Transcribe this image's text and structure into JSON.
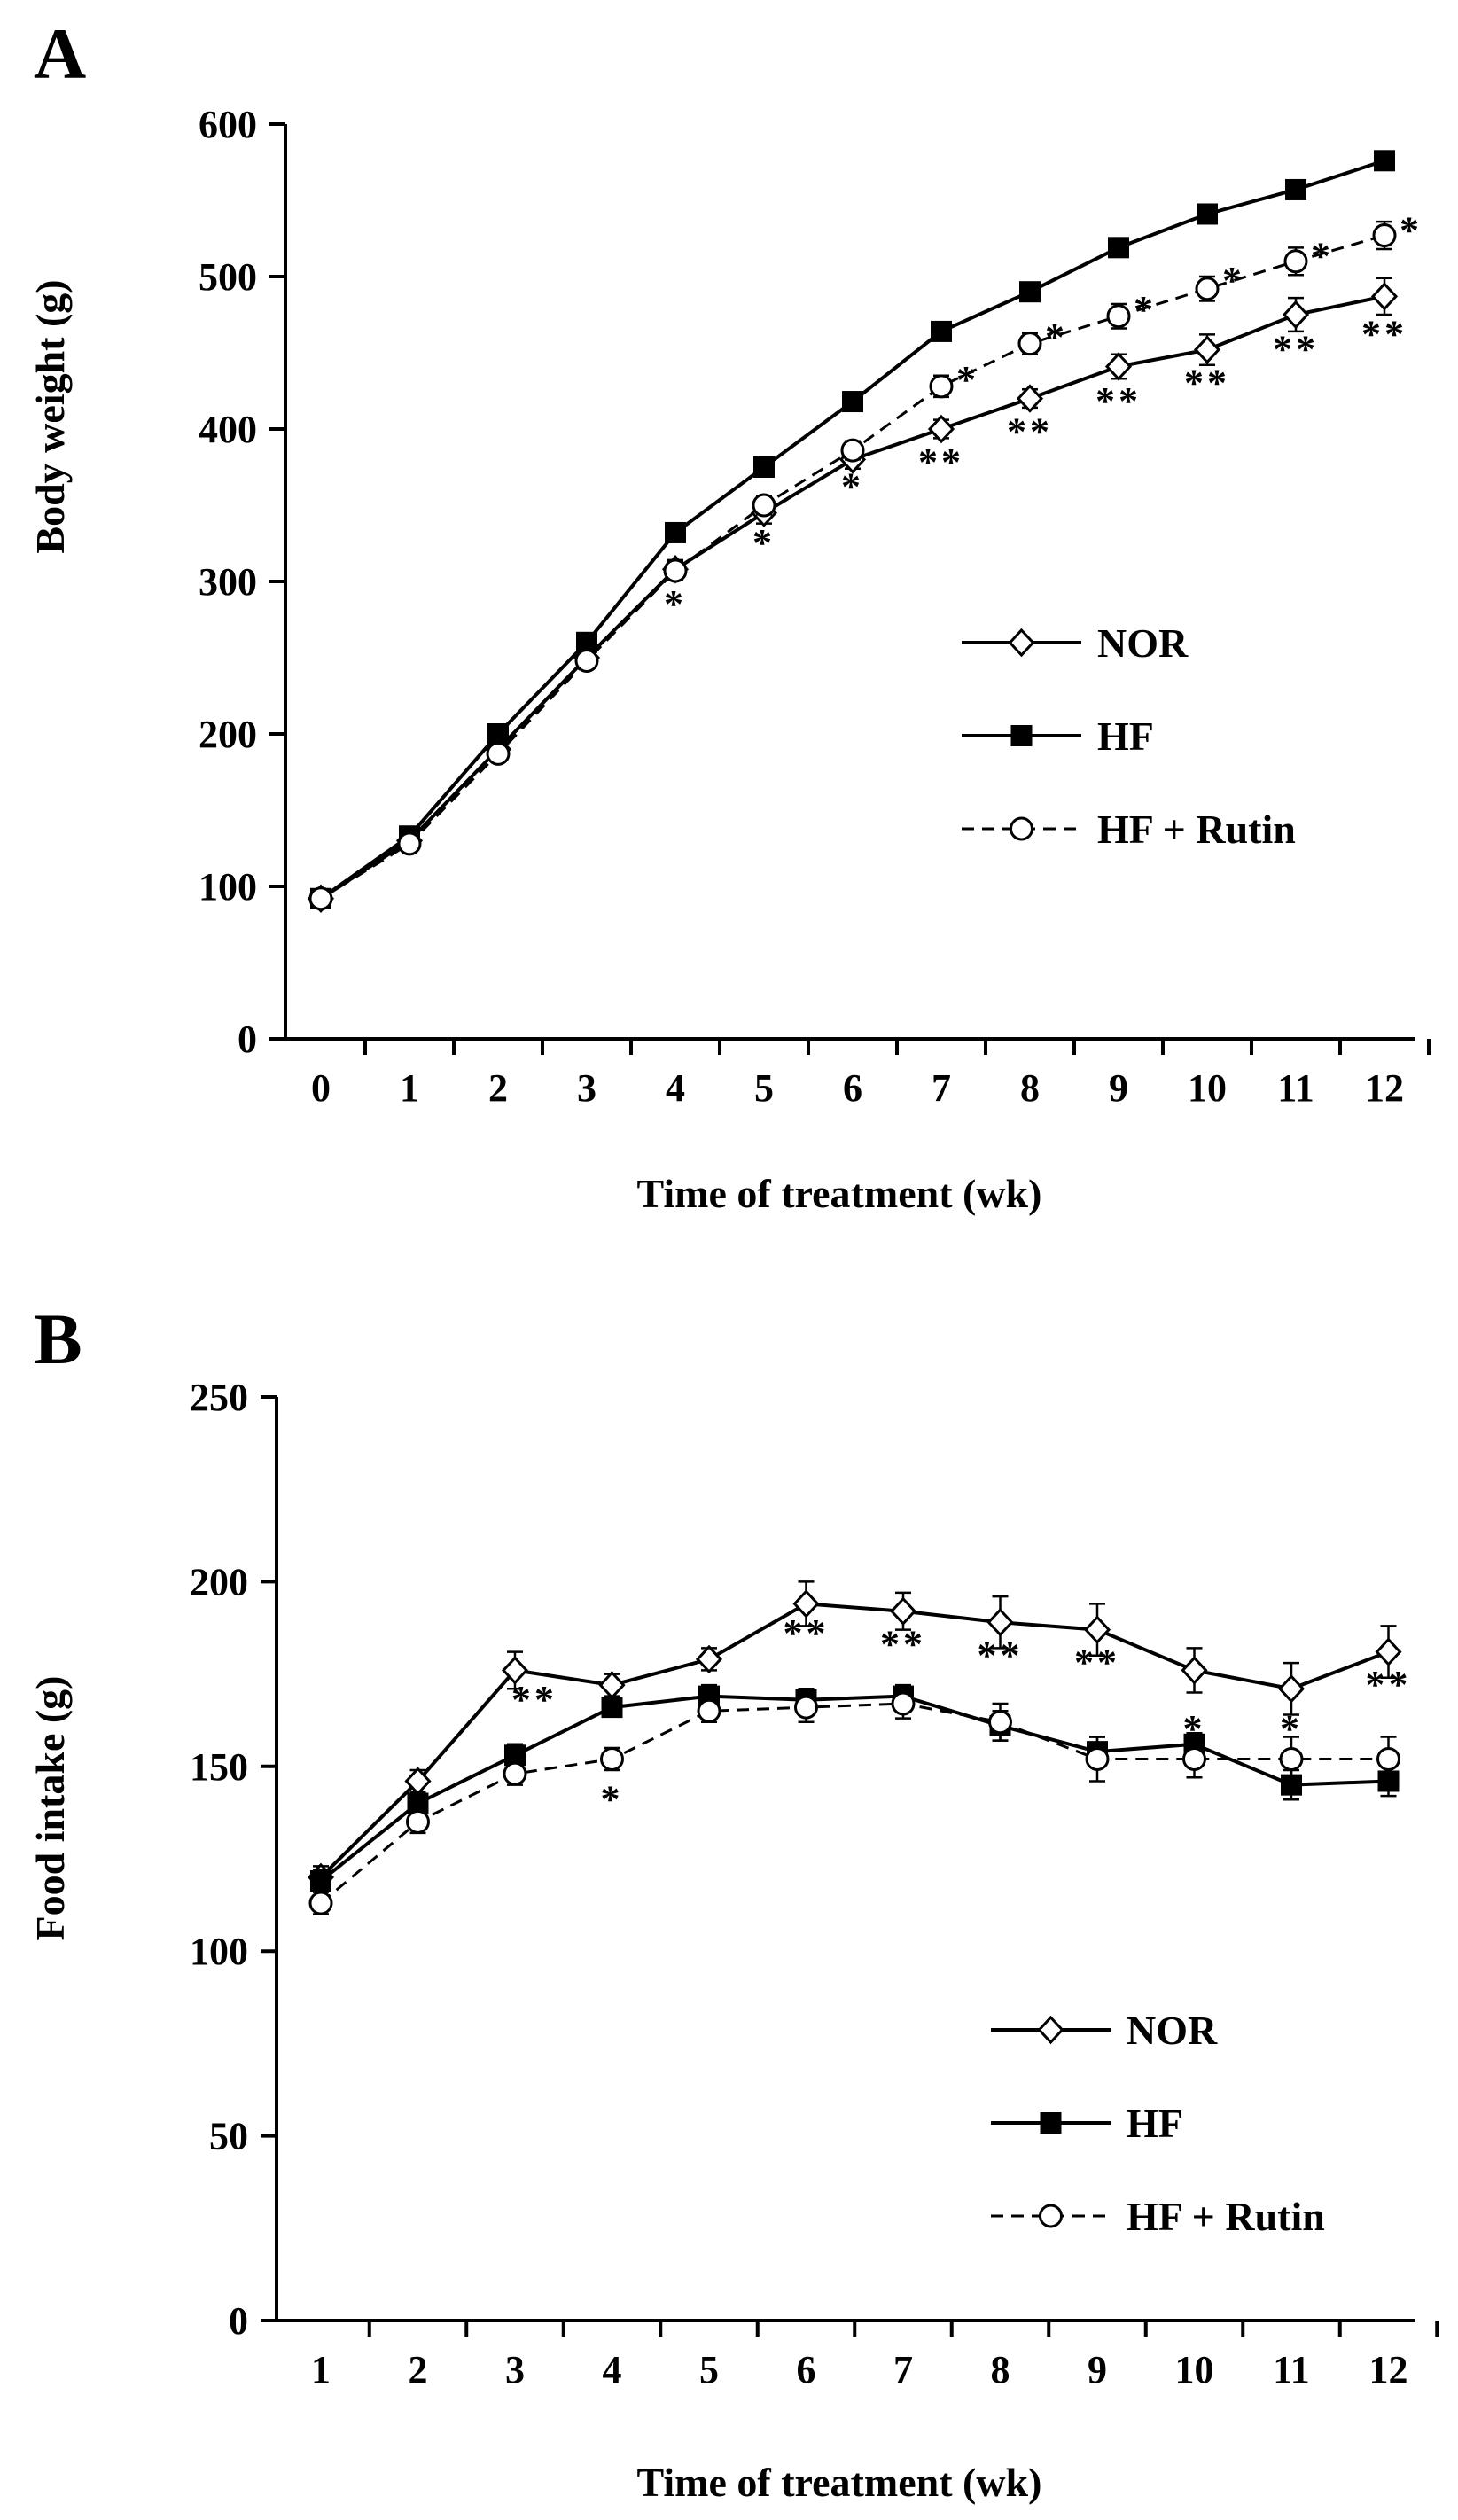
{
  "chart_data": [
    {
      "panel": "A",
      "type": "line",
      "xlabel": "Time of treatment (wk)",
      "ylabel": "Body weight (g)",
      "x": [
        0,
        1,
        2,
        3,
        4,
        5,
        6,
        7,
        8,
        9,
        10,
        11,
        12
      ],
      "xlim": [
        0,
        12
      ],
      "ylim": [
        0,
        600
      ],
      "yticks": [
        0,
        100,
        200,
        300,
        400,
        500,
        600
      ],
      "legend_position": "middle-right",
      "series": [
        {
          "name": "NOR",
          "marker": "open-diamond",
          "line": "solid",
          "values": [
            92,
            130,
            190,
            250,
            308,
            345,
            380,
            400,
            420,
            441,
            452,
            475,
            487
          ],
          "errors": [
            3,
            3,
            4,
            4,
            6,
            7,
            6,
            6,
            6,
            8,
            10,
            11,
            12
          ]
        },
        {
          "name": "HF",
          "marker": "filled-square",
          "line": "solid",
          "values": [
            92,
            133,
            200,
            260,
            332,
            375,
            418,
            464,
            490,
            519,
            541,
            557,
            576
          ],
          "errors": [
            3,
            3,
            4,
            4,
            4,
            4,
            5,
            5,
            5,
            5,
            5,
            5,
            5
          ]
        },
        {
          "name": "HF + Rutin",
          "marker": "open-circle",
          "line": "dashed",
          "values": [
            92,
            128,
            187,
            248,
            307,
            350,
            386,
            428,
            456,
            474,
            492,
            510,
            527
          ],
          "errors": [
            3,
            3,
            4,
            4,
            6,
            6,
            6,
            7,
            7,
            8,
            8,
            9,
            9
          ]
        }
      ],
      "annotations": [
        {
          "x": 4,
          "y": 285,
          "text": "*"
        },
        {
          "x": 5,
          "y": 325,
          "text": "*"
        },
        {
          "x": 6,
          "y": 362,
          "text": "*"
        },
        {
          "x": 7,
          "y": 378,
          "text": "**"
        },
        {
          "x": 7.3,
          "y": 432,
          "text": "*"
        },
        {
          "x": 8,
          "y": 398,
          "text": "**"
        },
        {
          "x": 8.3,
          "y": 460,
          "text": "*"
        },
        {
          "x": 9,
          "y": 418,
          "text": "**"
        },
        {
          "x": 9.3,
          "y": 478,
          "text": "*"
        },
        {
          "x": 10,
          "y": 430,
          "text": "**"
        },
        {
          "x": 10.3,
          "y": 497,
          "text": "*"
        },
        {
          "x": 11,
          "y": 452,
          "text": "**"
        },
        {
          "x": 11.3,
          "y": 513,
          "text": "*"
        },
        {
          "x": 12,
          "y": 462,
          "text": "**"
        },
        {
          "x": 12.3,
          "y": 530,
          "text": "*"
        }
      ]
    },
    {
      "panel": "B",
      "type": "line",
      "xlabel": "Time of treatment (wk)",
      "ylabel": "Food intake (g)",
      "x": [
        1,
        2,
        3,
        4,
        5,
        6,
        7,
        8,
        9,
        10,
        11,
        12
      ],
      "xlim": [
        1,
        12
      ],
      "ylim": [
        0,
        250
      ],
      "yticks": [
        0,
        50,
        100,
        150,
        200,
        250
      ],
      "legend_position": "bottom-right",
      "series": [
        {
          "name": "NOR",
          "marker": "open-diamond",
          "line": "solid",
          "values": [
            120,
            146,
            176,
            172,
            179,
            194,
            192,
            189,
            187,
            176,
            171,
            181
          ],
          "errors": [
            3,
            3,
            5,
            3,
            3,
            6,
            5,
            7,
            7,
            6,
            7,
            7
          ]
        },
        {
          "name": "HF",
          "marker": "filled-square",
          "line": "solid",
          "values": [
            119,
            140,
            153,
            166,
            169,
            168,
            169,
            161,
            154,
            156,
            145,
            146
          ],
          "errors": [
            3,
            3,
            3,
            2,
            3,
            3,
            3,
            4,
            4,
            3,
            4,
            4
          ]
        },
        {
          "name": "HF + Rutin",
          "marker": "open-circle",
          "line": "dashed",
          "values": [
            113,
            135,
            148,
            152,
            165,
            166,
            167,
            162,
            152,
            152,
            152,
            152
          ],
          "errors": [
            3,
            3,
            3,
            3,
            3,
            4,
            4,
            5,
            6,
            5,
            6,
            6
          ]
        }
      ],
      "annotations": [
        {
          "x": 3.2,
          "y": 168,
          "text": "**"
        },
        {
          "x": 4,
          "y": 141,
          "text": "*"
        },
        {
          "x": 6,
          "y": 186,
          "text": "**"
        },
        {
          "x": 7,
          "y": 183,
          "text": "**"
        },
        {
          "x": 8,
          "y": 180,
          "text": "**"
        },
        {
          "x": 9,
          "y": 178,
          "text": "**"
        },
        {
          "x": 10,
          "y": 160,
          "text": "*"
        },
        {
          "x": 11,
          "y": 160,
          "text": "*"
        },
        {
          "x": 12,
          "y": 172,
          "text": "**"
        }
      ]
    }
  ]
}
